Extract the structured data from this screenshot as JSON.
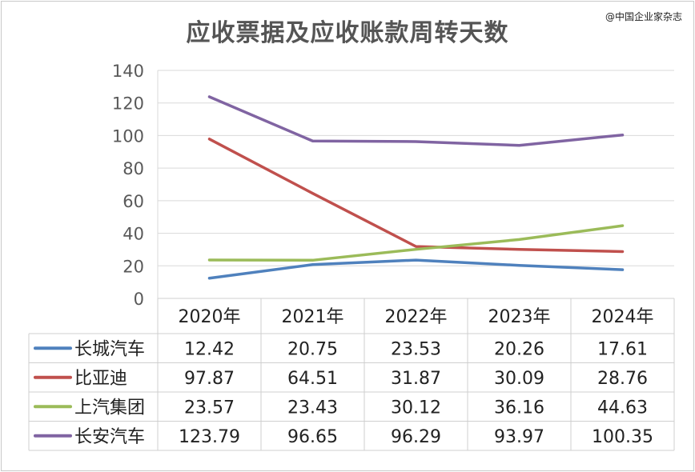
{
  "header": {
    "title": "应收票据及应收账款周转天数",
    "watermark": "@中国企业家杂志"
  },
  "colors": {
    "长城汽车": "#4f81bd",
    "比亚迪": "#c0504d",
    "上汽集团": "#9bbb59",
    "长安汽车": "#8064a2"
  },
  "chart_data": {
    "type": "line",
    "title": "应收票据及应收账款周转天数",
    "categories": [
      "2020年",
      "2021年",
      "2022年",
      "2023年",
      "2024年"
    ],
    "ylim": [
      0,
      140
    ],
    "yticks": [
      0,
      20,
      40,
      60,
      80,
      100,
      120,
      140
    ],
    "grid": true,
    "legend": "data-table",
    "series": [
      {
        "name": "长城汽车",
        "values": [
          12.42,
          20.75,
          23.53,
          20.26,
          17.61
        ]
      },
      {
        "name": "比亚迪",
        "values": [
          97.87,
          64.51,
          31.87,
          30.09,
          28.76
        ]
      },
      {
        "name": "上汽集团",
        "values": [
          23.57,
          23.43,
          30.12,
          36.16,
          44.63
        ]
      },
      {
        "name": "长安汽车",
        "values": [
          123.79,
          96.65,
          96.29,
          93.97,
          100.35
        ]
      }
    ]
  }
}
